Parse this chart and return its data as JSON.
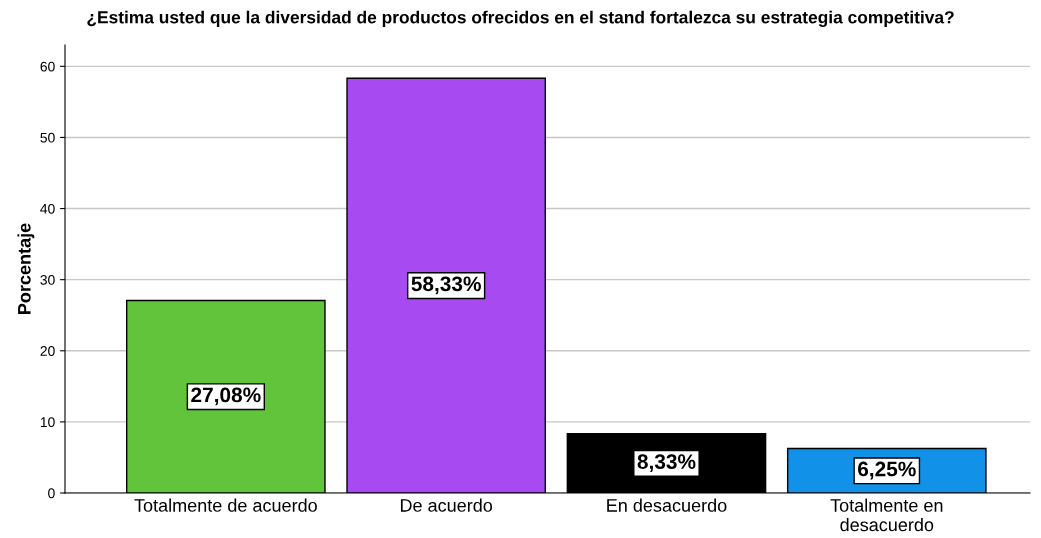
{
  "chart_data": {
    "type": "bar",
    "title": "¿Estima usted que la diversidad de productos ofrecidos en el stand fortalezca su estrategia competitiva?",
    "ylabel": "Porcentaje",
    "categories": [
      "Totalmente de acuerdo",
      "De acuerdo",
      "En desacuerdo",
      "Totalmente en\ndesacuerdo"
    ],
    "values": [
      27.08,
      58.33,
      8.33,
      6.25
    ],
    "colors": [
      "#61c43a",
      "#a84af2",
      "#000000",
      "#1192e8"
    ],
    "value_labels": [
      "27,08%",
      "58,33%",
      "8,33%",
      "6,25%"
    ],
    "ylim": [
      0,
      63
    ],
    "yticks": [
      0,
      10,
      20,
      30,
      40,
      50,
      60
    ],
    "grid": "y"
  }
}
